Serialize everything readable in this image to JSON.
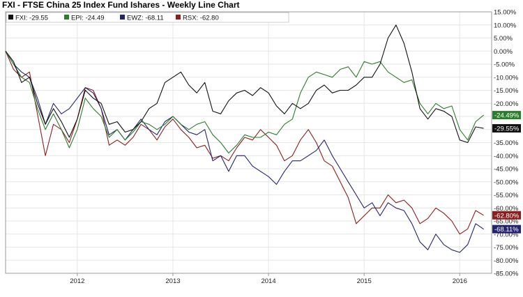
{
  "chart_data": {
    "type": "line",
    "title": "FXI - FTSE China 25 Index Fund Ishares - Weekly Line Chart",
    "x_range": [
      "2011-04",
      "2016-05"
    ],
    "x_ticks": [
      {
        "label": "2012",
        "x": "2012-01"
      },
      {
        "label": "2013",
        "x": "2013-01"
      },
      {
        "label": "2014",
        "x": "2014-01"
      },
      {
        "label": "2015",
        "x": "2015-01"
      },
      {
        "label": "2016",
        "x": "2016-01"
      }
    ],
    "y_unit": "%",
    "ylim": [
      -85,
      15
    ],
    "y_ticks": [
      "15.00%",
      "10.00%",
      "5.00%",
      "0.00%",
      "-5.00%",
      "-10.00%",
      "-15.00%",
      "-20.00%",
      "-25.00%",
      "-30.00%",
      "-35.00%",
      "-40.00%",
      "-45.00%",
      "-50.00%",
      "-55.00%",
      "-60.00%",
      "-65.00%",
      "-70.00%",
      "-75.00%",
      "-80.00%",
      "-85.00%"
    ],
    "y_tick_values": [
      15,
      10,
      5,
      0,
      -5,
      -10,
      -15,
      -20,
      -25,
      -30,
      -35,
      -40,
      -45,
      -50,
      -55,
      -60,
      -65,
      -70,
      -75,
      -80,
      -85
    ],
    "grid": true,
    "legend_position": "top-left",
    "series": [
      {
        "name": "FXI",
        "legend_value": "-29.55",
        "end_label": "-29.55%",
        "color": "#111111",
        "points": [
          [
            "2011-04",
            0
          ],
          [
            "2011-05",
            -4
          ],
          [
            "2011-06",
            -12
          ],
          [
            "2011-07",
            -10
          ],
          [
            "2011-08",
            -20
          ],
          [
            "2011-09",
            -28
          ],
          [
            "2011-10",
            -22
          ],
          [
            "2011-11",
            -27
          ],
          [
            "2011-12",
            -33
          ],
          [
            "2012-01",
            -26
          ],
          [
            "2012-02",
            -15
          ],
          [
            "2012-03",
            -18
          ],
          [
            "2012-04",
            -20
          ],
          [
            "2012-05",
            -28
          ],
          [
            "2012-06",
            -27
          ],
          [
            "2012-07",
            -31
          ],
          [
            "2012-08",
            -30
          ],
          [
            "2012-09",
            -27
          ],
          [
            "2012-10",
            -22
          ],
          [
            "2012-11",
            -20
          ],
          [
            "2012-12",
            -12
          ],
          [
            "2013-01",
            -10
          ],
          [
            "2013-02",
            -8
          ],
          [
            "2013-03",
            -13
          ],
          [
            "2013-04",
            -16
          ],
          [
            "2013-05",
            -12
          ],
          [
            "2013-06",
            -23
          ],
          [
            "2013-07",
            -24
          ],
          [
            "2013-08",
            -19
          ],
          [
            "2013-09",
            -16
          ],
          [
            "2013-10",
            -15
          ],
          [
            "2013-11",
            -17
          ],
          [
            "2013-12",
            -14
          ],
          [
            "2014-01",
            -16
          ],
          [
            "2014-02",
            -21
          ],
          [
            "2014-03",
            -24
          ],
          [
            "2014-04",
            -20
          ],
          [
            "2014-05",
            -22
          ],
          [
            "2014-06",
            -20
          ],
          [
            "2014-07",
            -15
          ],
          [
            "2014-08",
            -13
          ],
          [
            "2014-09",
            -16
          ],
          [
            "2014-10",
            -15
          ],
          [
            "2014-11",
            -15
          ],
          [
            "2014-12",
            -13
          ],
          [
            "2015-01",
            -10
          ],
          [
            "2015-02",
            -10
          ],
          [
            "2015-03",
            -5
          ],
          [
            "2015-04",
            5
          ],
          [
            "2015-05",
            10
          ],
          [
            "2015-06",
            3
          ],
          [
            "2015-07",
            -8
          ],
          [
            "2015-08",
            -22
          ],
          [
            "2015-09",
            -26
          ],
          [
            "2015-10",
            -22
          ],
          [
            "2015-11",
            -23
          ],
          [
            "2015-12",
            -25
          ],
          [
            "2016-01",
            -34
          ],
          [
            "2016-02",
            -35
          ],
          [
            "2016-03",
            -29
          ],
          [
            "2016-04",
            -29.55
          ]
        ]
      },
      {
        "name": "EPI",
        "legend_value": "-24.49",
        "end_label": "-24.49%",
        "color": "#2a7d2a",
        "points": [
          [
            "2011-04",
            0
          ],
          [
            "2011-05",
            -5
          ],
          [
            "2011-06",
            -10
          ],
          [
            "2011-07",
            -12
          ],
          [
            "2011-08",
            -22
          ],
          [
            "2011-09",
            -30
          ],
          [
            "2011-10",
            -24
          ],
          [
            "2011-11",
            -30
          ],
          [
            "2011-12",
            -37
          ],
          [
            "2012-01",
            -30
          ],
          [
            "2012-02",
            -18
          ],
          [
            "2012-03",
            -22
          ],
          [
            "2012-04",
            -25
          ],
          [
            "2012-05",
            -33
          ],
          [
            "2012-06",
            -30
          ],
          [
            "2012-07",
            -34
          ],
          [
            "2012-08",
            -31
          ],
          [
            "2012-09",
            -27
          ],
          [
            "2012-10",
            -28
          ],
          [
            "2012-11",
            -30
          ],
          [
            "2012-12",
            -28
          ],
          [
            "2013-01",
            -25
          ],
          [
            "2013-02",
            -28
          ],
          [
            "2013-03",
            -30
          ],
          [
            "2013-04",
            -28
          ],
          [
            "2013-05",
            -27
          ],
          [
            "2013-06",
            -32
          ],
          [
            "2013-07",
            -35
          ],
          [
            "2013-08",
            -39
          ],
          [
            "2013-09",
            -36
          ],
          [
            "2013-10",
            -32
          ],
          [
            "2013-11",
            -33
          ],
          [
            "2013-12",
            -33
          ],
          [
            "2014-01",
            -31
          ],
          [
            "2014-02",
            -32
          ],
          [
            "2014-03",
            -28
          ],
          [
            "2014-04",
            -26
          ],
          [
            "2014-05",
            -16
          ],
          [
            "2014-06",
            -10
          ],
          [
            "2014-07",
            -8
          ],
          [
            "2014-08",
            -9
          ],
          [
            "2014-09",
            -10
          ],
          [
            "2014-10",
            -7
          ],
          [
            "2014-11",
            -6
          ],
          [
            "2014-12",
            -10
          ],
          [
            "2015-01",
            -4
          ],
          [
            "2015-02",
            -5
          ],
          [
            "2015-03",
            -4
          ],
          [
            "2015-04",
            -8
          ],
          [
            "2015-05",
            -10
          ],
          [
            "2015-06",
            -12
          ],
          [
            "2015-07",
            -11
          ],
          [
            "2015-08",
            -20
          ],
          [
            "2015-09",
            -24
          ],
          [
            "2015-10",
            -20
          ],
          [
            "2015-11",
            -22
          ],
          [
            "2015-12",
            -21
          ],
          [
            "2016-01",
            -30
          ],
          [
            "2016-02",
            -34
          ],
          [
            "2016-03",
            -27
          ],
          [
            "2016-04",
            -24.49
          ]
        ]
      },
      {
        "name": "EWZ",
        "legend_value": "-68.11",
        "end_label": "-68.11%",
        "color": "#23236e",
        "points": [
          [
            "2011-04",
            0
          ],
          [
            "2011-05",
            -5
          ],
          [
            "2011-06",
            -8
          ],
          [
            "2011-07",
            -10
          ],
          [
            "2011-08",
            -18
          ],
          [
            "2011-09",
            -28
          ],
          [
            "2011-10",
            -20
          ],
          [
            "2011-11",
            -24
          ],
          [
            "2011-12",
            -22
          ],
          [
            "2012-01",
            -18
          ],
          [
            "2012-02",
            -14
          ],
          [
            "2012-03",
            -16
          ],
          [
            "2012-04",
            -22
          ],
          [
            "2012-05",
            -32
          ],
          [
            "2012-06",
            -30
          ],
          [
            "2012-07",
            -34
          ],
          [
            "2012-08",
            -30
          ],
          [
            "2012-09",
            -26
          ],
          [
            "2012-10",
            -30
          ],
          [
            "2012-11",
            -32
          ],
          [
            "2012-12",
            -27
          ],
          [
            "2013-01",
            -25
          ],
          [
            "2013-02",
            -28
          ],
          [
            "2013-03",
            -31
          ],
          [
            "2013-04",
            -32
          ],
          [
            "2013-05",
            -30
          ],
          [
            "2013-06",
            -42
          ],
          [
            "2013-07",
            -40
          ],
          [
            "2013-08",
            -46
          ],
          [
            "2013-09",
            -40
          ],
          [
            "2013-10",
            -40
          ],
          [
            "2013-11",
            -44
          ],
          [
            "2013-12",
            -46
          ],
          [
            "2014-01",
            -48
          ],
          [
            "2014-02",
            -51
          ],
          [
            "2014-03",
            -46
          ],
          [
            "2014-04",
            -42
          ],
          [
            "2014-05",
            -42
          ],
          [
            "2014-06",
            -40
          ],
          [
            "2014-07",
            -38
          ],
          [
            "2014-08",
            -34
          ],
          [
            "2014-09",
            -40
          ],
          [
            "2014-10",
            -45
          ],
          [
            "2014-11",
            -50
          ],
          [
            "2014-12",
            -55
          ],
          [
            "2015-01",
            -60
          ],
          [
            "2015-02",
            -58
          ],
          [
            "2015-03",
            -63
          ],
          [
            "2015-04",
            -58
          ],
          [
            "2015-05",
            -60
          ],
          [
            "2015-06",
            -61
          ],
          [
            "2015-07",
            -66
          ],
          [
            "2015-08",
            -73
          ],
          [
            "2015-09",
            -76
          ],
          [
            "2015-10",
            -70
          ],
          [
            "2015-11",
            -74
          ],
          [
            "2015-12",
            -76
          ],
          [
            "2016-01",
            -77
          ],
          [
            "2016-02",
            -74
          ],
          [
            "2016-03",
            -66
          ],
          [
            "2016-04",
            -68.11
          ]
        ]
      },
      {
        "name": "RSX",
        "legend_value": "-62.80",
        "end_label": "-62.80%",
        "color": "#8b1e1e",
        "points": [
          [
            "2011-04",
            0
          ],
          [
            "2011-05",
            -7
          ],
          [
            "2011-06",
            -10
          ],
          [
            "2011-07",
            -8
          ],
          [
            "2011-08",
            -24
          ],
          [
            "2011-09",
            -40
          ],
          [
            "2011-10",
            -28
          ],
          [
            "2011-11",
            -30
          ],
          [
            "2011-12",
            -35
          ],
          [
            "2012-01",
            -26
          ],
          [
            "2012-02",
            -14
          ],
          [
            "2012-03",
            -15
          ],
          [
            "2012-04",
            -22
          ],
          [
            "2012-05",
            -36
          ],
          [
            "2012-06",
            -34
          ],
          [
            "2012-07",
            -36
          ],
          [
            "2012-08",
            -33
          ],
          [
            "2012-09",
            -28
          ],
          [
            "2012-10",
            -30
          ],
          [
            "2012-11",
            -34
          ],
          [
            "2012-12",
            -29
          ],
          [
            "2013-01",
            -26
          ],
          [
            "2013-02",
            -30
          ],
          [
            "2013-03",
            -33
          ],
          [
            "2013-04",
            -37
          ],
          [
            "2013-05",
            -36
          ],
          [
            "2013-06",
            -41
          ],
          [
            "2013-07",
            -40
          ],
          [
            "2013-08",
            -42
          ],
          [
            "2013-09",
            -37
          ],
          [
            "2013-10",
            -33
          ],
          [
            "2013-11",
            -34
          ],
          [
            "2013-12",
            -30
          ],
          [
            "2014-01",
            -33
          ],
          [
            "2014-02",
            -36
          ],
          [
            "2014-03",
            -42
          ],
          [
            "2014-04",
            -40
          ],
          [
            "2014-05",
            -34
          ],
          [
            "2014-06",
            -30
          ],
          [
            "2014-07",
            -35
          ],
          [
            "2014-08",
            -42
          ],
          [
            "2014-09",
            -44
          ],
          [
            "2014-10",
            -50
          ],
          [
            "2014-11",
            -56
          ],
          [
            "2014-12",
            -66
          ],
          [
            "2015-01",
            -63
          ],
          [
            "2015-02",
            -60
          ],
          [
            "2015-03",
            -60
          ],
          [
            "2015-04",
            -55
          ],
          [
            "2015-05",
            -58
          ],
          [
            "2015-06",
            -57
          ],
          [
            "2015-07",
            -60
          ],
          [
            "2015-08",
            -66
          ],
          [
            "2015-09",
            -64
          ],
          [
            "2015-10",
            -60
          ],
          [
            "2015-11",
            -62
          ],
          [
            "2015-12",
            -65
          ],
          [
            "2016-01",
            -70
          ],
          [
            "2016-02",
            -68
          ],
          [
            "2016-03",
            -61
          ],
          [
            "2016-04",
            -62.8
          ]
        ]
      }
    ]
  }
}
